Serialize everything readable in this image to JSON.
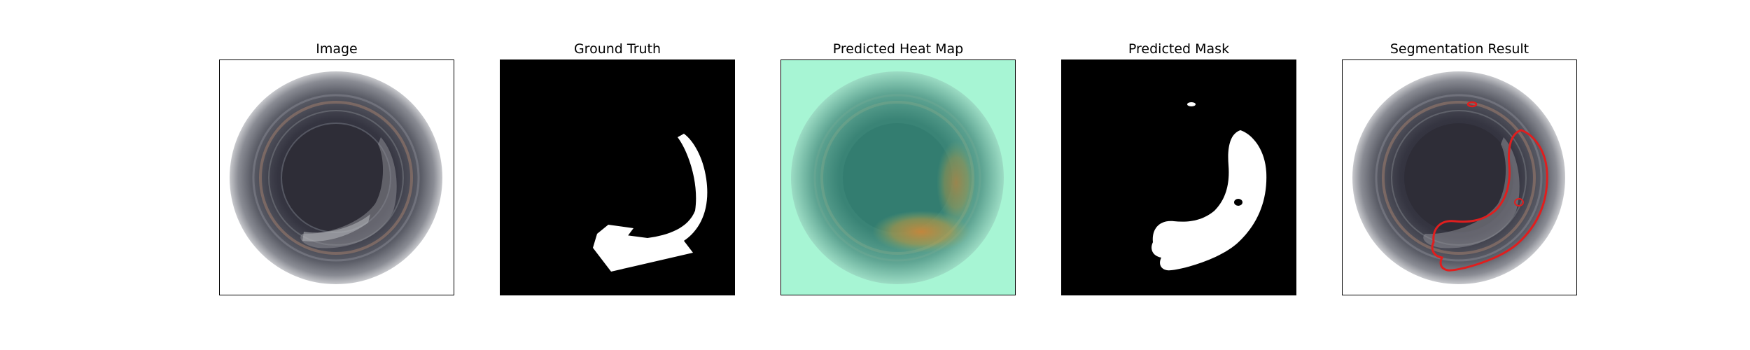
{
  "figure": {
    "panels": [
      {
        "id": "image",
        "title": "Image"
      },
      {
        "id": "ground-truth",
        "title": "Ground Truth"
      },
      {
        "id": "heatmap",
        "title": "Predicted Heat Map"
      },
      {
        "id": "pred-mask",
        "title": "Predicted Mask"
      },
      {
        "id": "segmentation",
        "title": "Segmentation Result"
      }
    ]
  },
  "colors": {
    "background": "#ffffff",
    "mask_fg": "#ffffff",
    "mask_bg": "#000000",
    "heatmap_base": "#a7f5d4",
    "heatmap_hot": "#d9a23a",
    "contour": "#e01e1e",
    "bottle_dark": "#2a2a33",
    "bottle_ring": "#6f7078"
  }
}
